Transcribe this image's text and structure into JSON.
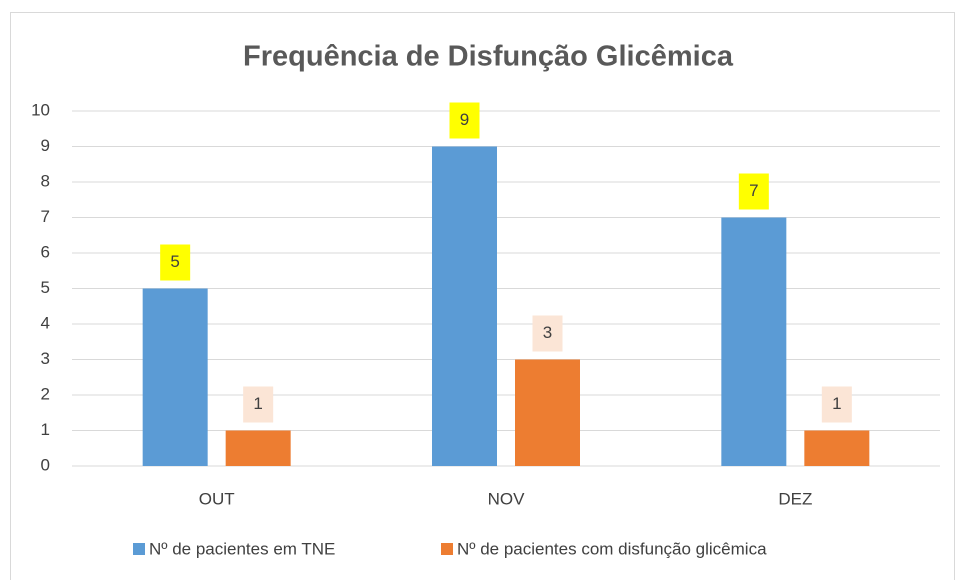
{
  "chart_data": {
    "type": "bar",
    "title": "Frequência de Disfunção Glicêmica",
    "categories": [
      "OUT",
      "NOV",
      "DEZ"
    ],
    "series": [
      {
        "name": "Nº de pacientes em TNE",
        "color": "#5b9bd5",
        "label_background": "#ffff00",
        "values": [
          5,
          9,
          7
        ]
      },
      {
        "name": "Nº de pacientes com disfunção glicêmica",
        "color": "#ed7d31",
        "label_background": "#fbe5d6",
        "values": [
          1,
          3,
          1
        ]
      }
    ],
    "ylim": [
      0,
      10
    ],
    "yticks": [
      0,
      1,
      2,
      3,
      4,
      5,
      6,
      7,
      8,
      9,
      10
    ],
    "grid": true,
    "legend": "bottom"
  }
}
